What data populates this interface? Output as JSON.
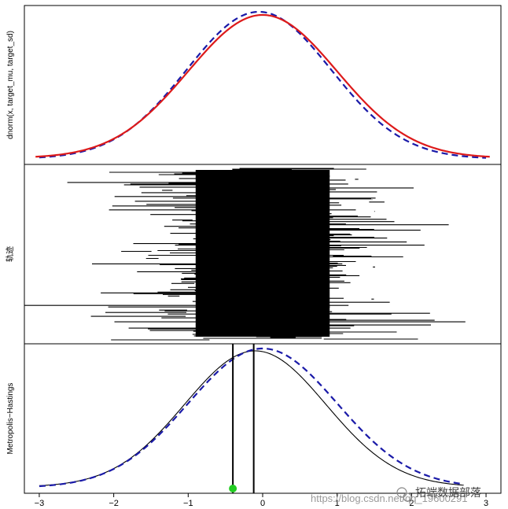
{
  "watermark": {
    "url_text": "https://blog.csdn.net/qq_19600291",
    "brand_text": "拓端数据部落"
  },
  "chart_data": [
    {
      "type": "line",
      "panel": "top",
      "ylabel": "dnorm(x, target_mu, target_sd)",
      "xlim": [
        -3.2,
        3.2
      ],
      "series": [
        {
          "style": "dashed",
          "color": "#1a1aa8",
          "kind": "density",
          "mu": -0.05,
          "sd": 0.97
        },
        {
          "style": "solid",
          "color": "#dd1a1a",
          "kind": "density",
          "mu": 0.0,
          "sd": 1.0
        }
      ]
    },
    {
      "type": "line",
      "panel": "middle",
      "ylabel": "轨迹",
      "xlim": [
        -3.2,
        3.2
      ],
      "trace_extent": [
        -3.2,
        3.2
      ],
      "color": "#000000"
    },
    {
      "type": "line",
      "panel": "bottom",
      "ylabel": "Metropolis−Hastings",
      "xlim": [
        -3.2,
        3.2
      ],
      "x_ticks": [
        -3,
        -2,
        -1,
        0,
        1,
        2,
        3
      ],
      "x_tick_labels": [
        "−3",
        "−2",
        "−1",
        "0",
        "1",
        "2",
        "3"
      ],
      "series": [
        {
          "style": "solid",
          "color": "#000000",
          "kind": "density",
          "mu": -0.1,
          "sd": 0.95
        },
        {
          "style": "dashed",
          "color": "#1a1aa8",
          "kind": "density",
          "mu": 0.0,
          "sd": 1.0
        }
      ],
      "vlines": [
        {
          "x": -0.4,
          "width": 2
        },
        {
          "x": -0.12,
          "width": 2
        }
      ],
      "point": {
        "x": -0.4,
        "color": "#22cc22"
      }
    }
  ]
}
